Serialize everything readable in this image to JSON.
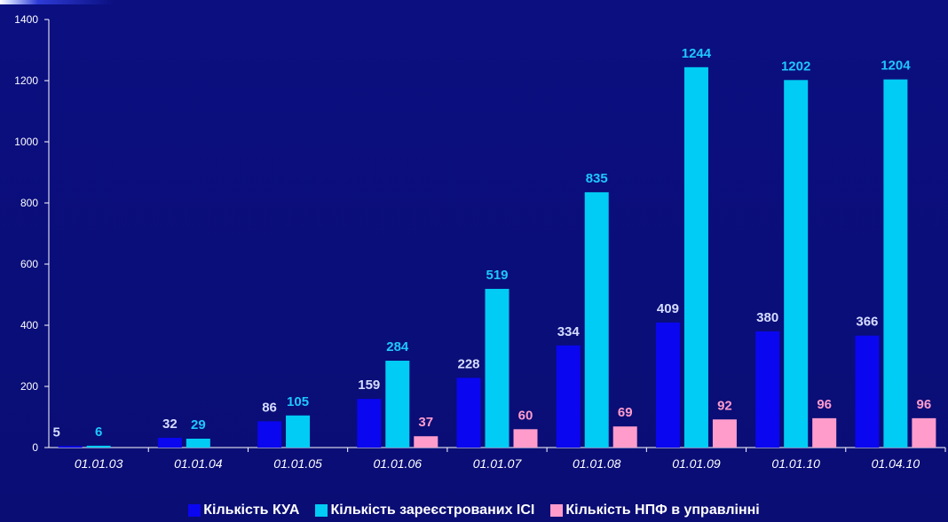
{
  "chart_data": {
    "type": "bar",
    "categories": [
      "01.01.03",
      "01.01.04",
      "01.01.05",
      "01.01.06",
      "01.01.07",
      "01.01.08",
      "01.01.09",
      "01.01.10",
      "01.04.10"
    ],
    "series": [
      {
        "name": "Кількість КУА",
        "color": "#0a06f0",
        "label_color": "#d6dcff",
        "values": [
          5,
          32,
          86,
          159,
          228,
          334,
          409,
          380,
          366
        ]
      },
      {
        "name": "Кількість зареєстрованих ІСІ",
        "color": "#00ccf5",
        "label_color": "#1ec7ff",
        "values": [
          6,
          29,
          105,
          284,
          519,
          835,
          1244,
          1202,
          1204
        ]
      },
      {
        "name": "Кількість НПФ в управлінні",
        "color": "#ff9ccc",
        "label_color": "#ff9ccc",
        "values": [
          null,
          null,
          null,
          37,
          60,
          69,
          92,
          96,
          96
        ]
      }
    ],
    "yticks": [
      0,
      200,
      400,
      600,
      800,
      1000,
      1200,
      1400
    ],
    "ylim": [
      0,
      1400
    ],
    "grid": false,
    "legend": "bottom"
  }
}
